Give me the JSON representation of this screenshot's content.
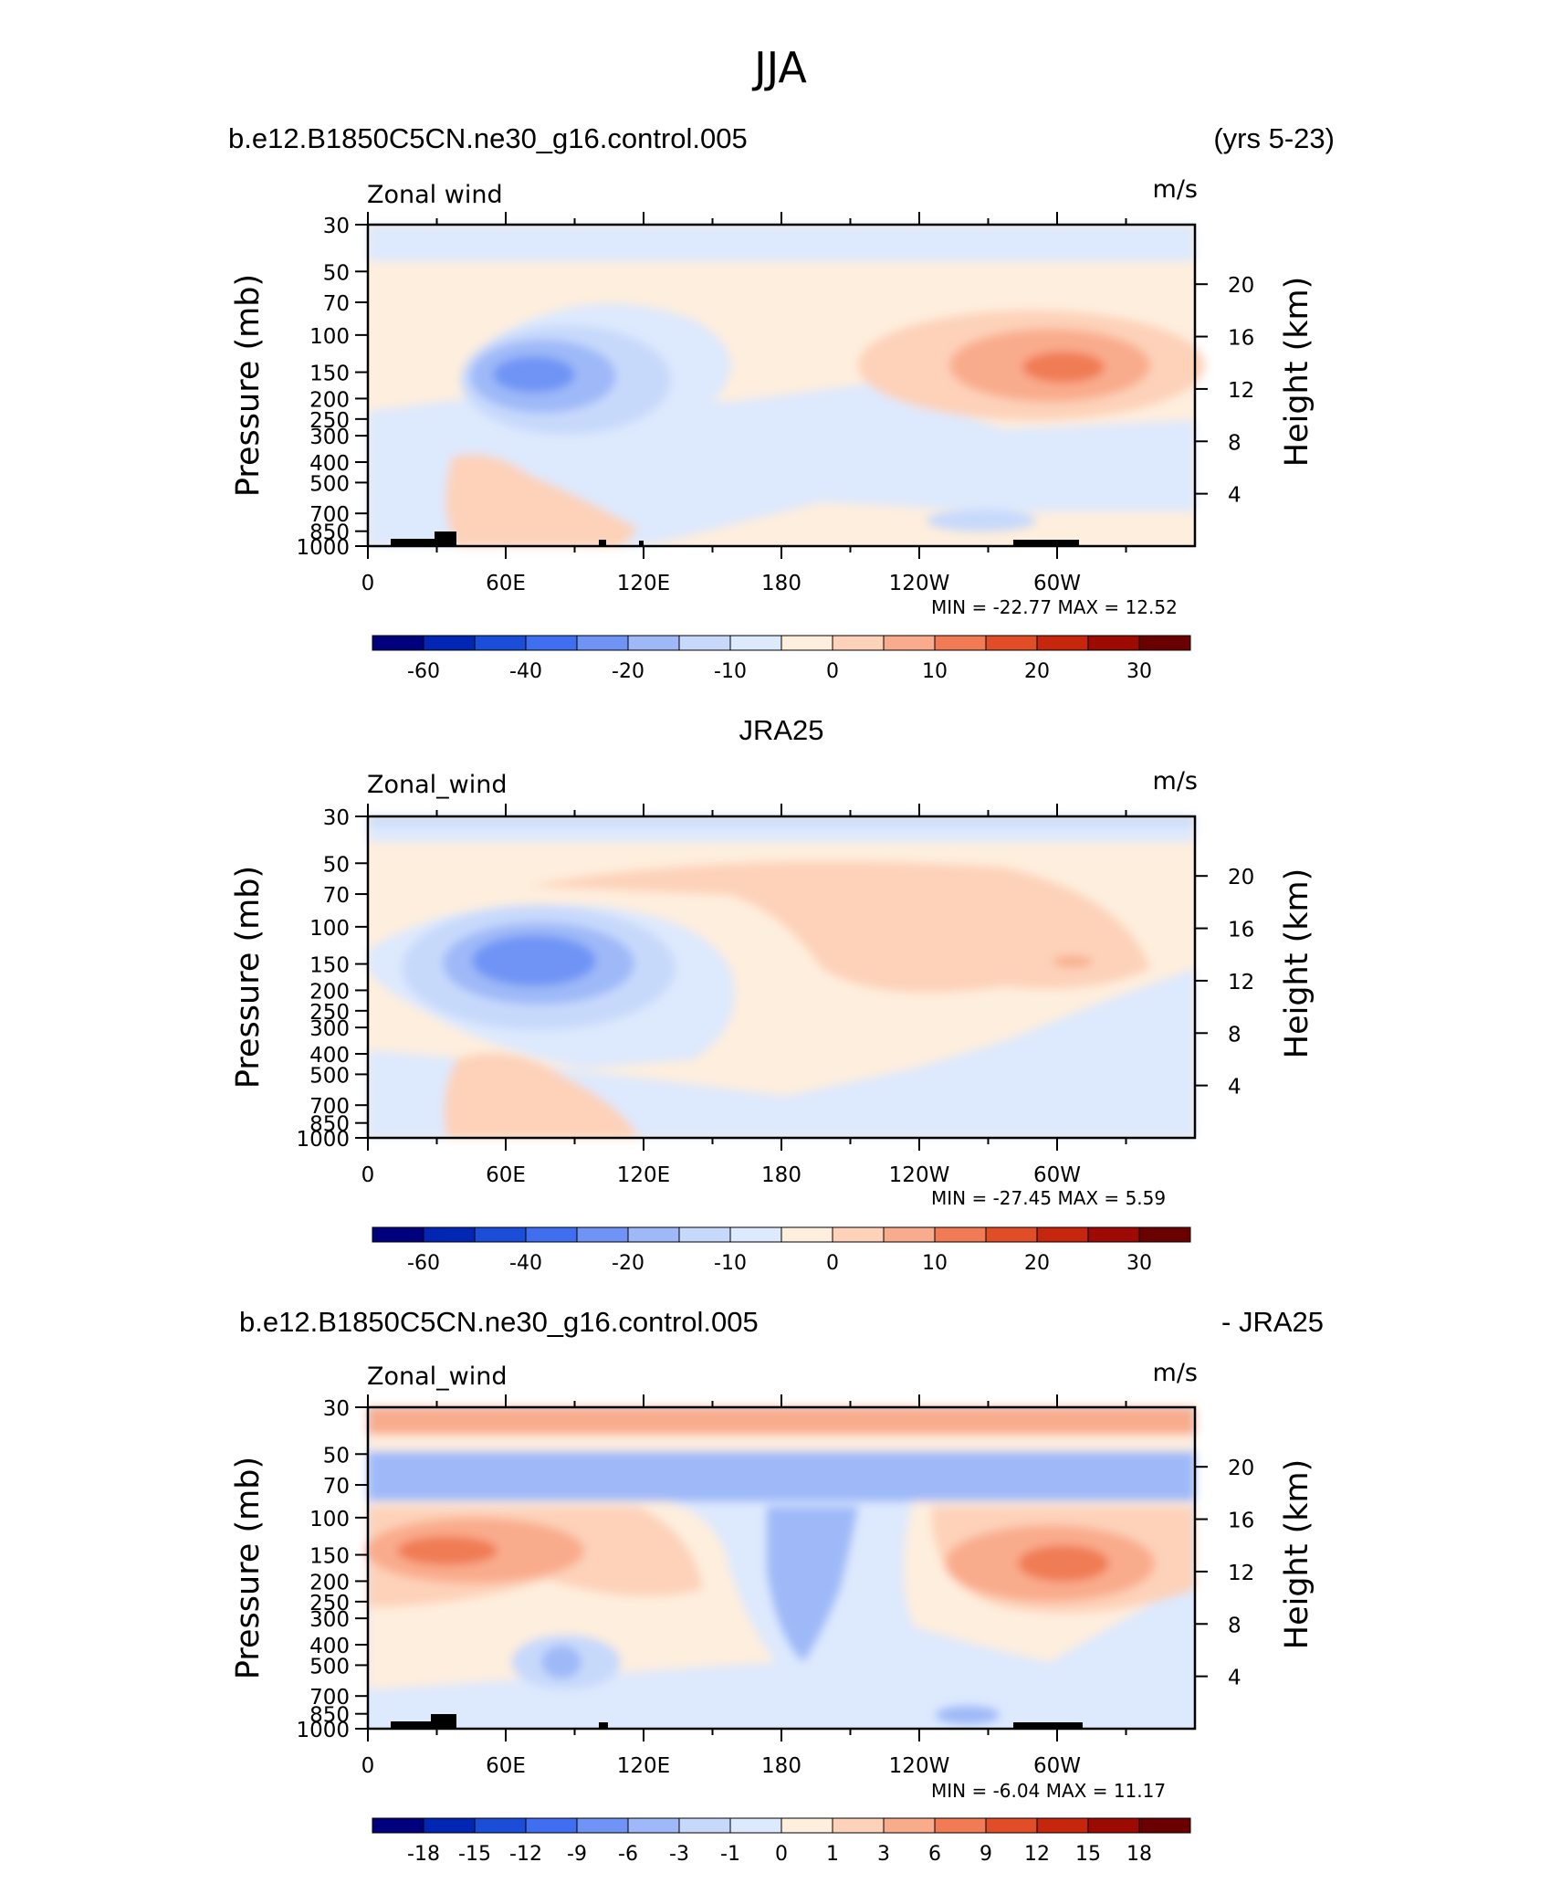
{
  "figure": {
    "season": "JJA",
    "panel_units_label": "m/s"
  },
  "chart_data": [
    {
      "type": "heatmap",
      "title_left": "b.e12.B1850C5CN.ne30_g16.control.005",
      "title_right": "(yrs 5-23)",
      "variable_label": "Zonal wind",
      "units": "m/s",
      "ylabel": "Pressure (mb)",
      "ylabel_right": "Height (km)",
      "x_ticks": [
        "0",
        "60E",
        "120E",
        "180",
        "120W",
        "60W"
      ],
      "y_ticks": [
        "30",
        "50",
        "70",
        "100",
        "150",
        "200",
        "250",
        "300",
        "400",
        "500",
        "700",
        "850",
        "1000"
      ],
      "y_ticks_right": [
        "20",
        "16",
        "12",
        "8",
        "4"
      ],
      "min_label": "MIN =",
      "min_value": "-22.77",
      "max_label": "MAX =",
      "max_value": "12.52",
      "colorbar_labels": [
        "-60",
        "-40",
        "-20",
        "-10",
        "0",
        "10",
        "20",
        "30"
      ],
      "features": [
        {
          "name": "easterly jet",
          "lon_deg": 70,
          "pressure_mb": 150,
          "value": -22.77
        },
        {
          "name": "westerly max",
          "lon_deg": 300,
          "pressure_mb": 150,
          "value": 12.52
        }
      ]
    },
    {
      "type": "heatmap",
      "title_center": "JRA25",
      "variable_label": "Zonal_wind",
      "units": "m/s",
      "ylabel": "Pressure (mb)",
      "ylabel_right": "Height (km)",
      "x_ticks": [
        "0",
        "60E",
        "120E",
        "180",
        "120W",
        "60W"
      ],
      "y_ticks": [
        "30",
        "50",
        "70",
        "100",
        "150",
        "200",
        "250",
        "300",
        "400",
        "500",
        "700",
        "850",
        "1000"
      ],
      "y_ticks_right": [
        "20",
        "16",
        "12",
        "8",
        "4"
      ],
      "min_label": "MIN =",
      "min_value": "-27.45",
      "max_label": "MAX =",
      "max_value": "5.59",
      "colorbar_labels": [
        "-60",
        "-40",
        "-20",
        "-10",
        "0",
        "10",
        "20",
        "30"
      ],
      "features": [
        {
          "name": "easterly jet",
          "lon_deg": 75,
          "pressure_mb": 150,
          "value": -27.45
        },
        {
          "name": "westerly max",
          "lon_deg": 300,
          "pressure_mb": 150,
          "value": 5.59
        }
      ]
    },
    {
      "type": "heatmap",
      "title_left": "b.e12.B1850C5CN.ne30_g16.control.005",
      "title_right": "- JRA25",
      "variable_label": "Zonal_wind",
      "units": "m/s",
      "ylabel": "Pressure (mb)",
      "ylabel_right": "Height (km)",
      "x_ticks": [
        "0",
        "60E",
        "120E",
        "180",
        "120W",
        "60W"
      ],
      "y_ticks": [
        "30",
        "50",
        "70",
        "100",
        "150",
        "200",
        "250",
        "300",
        "400",
        "500",
        "700",
        "850",
        "1000"
      ],
      "y_ticks_right": [
        "20",
        "16",
        "12",
        "8",
        "4"
      ],
      "min_label": "MIN =",
      "min_value": "-6.04",
      "max_label": "MAX =",
      "max_value": "11.17",
      "colorbar_labels": [
        "-18",
        "-15",
        "-12",
        "-9",
        "-6",
        "-3",
        "-1",
        "0",
        "1",
        "3",
        "6",
        "9",
        "12",
        "15",
        "18"
      ],
      "features": [
        {
          "name": "difference max",
          "lon_deg": 300,
          "pressure_mb": 150,
          "value": 11.17
        },
        {
          "name": "difference min",
          "lon_deg": 190,
          "pressure_mb": 60,
          "value": -6.04
        }
      ]
    }
  ],
  "colors": {
    "palette": [
      "#00007e",
      "#0026b3",
      "#1a4ed9",
      "#3f6ff0",
      "#6f94f5",
      "#9fb9f8",
      "#c7d9fb",
      "#dde9fd",
      "#feeedd",
      "#fdd2b9",
      "#f9ac8c",
      "#f07b55",
      "#e14d27",
      "#c6260c",
      "#9d0a02",
      "#6b0000"
    ]
  }
}
